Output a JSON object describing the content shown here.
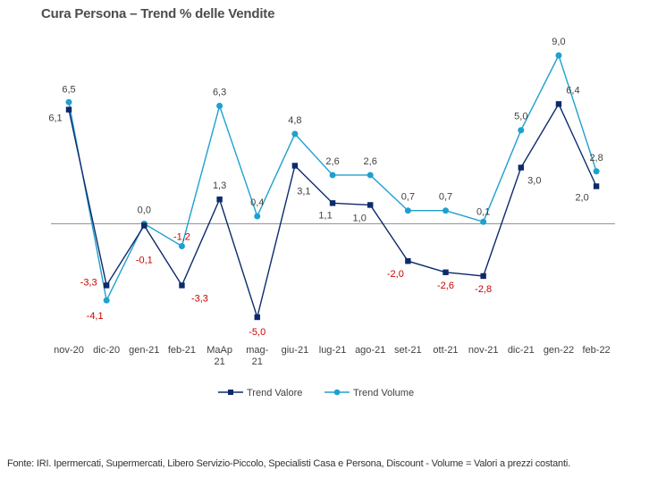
{
  "title": "Cura Persona –  Trend % delle Vendite",
  "footer": "Fonte: IRI. Ipermercati, Supermercati, Libero Servizio-Piccolo,  Specialisti Casa e Persona, Discount -  Volume =  Valori a prezzi  costanti.",
  "colors": {
    "valore": "#0d2a6b",
    "volume": "#1fa0cf",
    "negative_label": "#cc0000",
    "positive_label": "#404040",
    "zero_line": "#8c8c8c"
  },
  "chart_data": {
    "type": "line",
    "categories": [
      "nov-20",
      "dic-20",
      "gen-21",
      "feb-21",
      "MaAp 21",
      "mag-21",
      "giu-21",
      "lug-21",
      "ago-21",
      "set-21",
      "ott-21",
      "nov-21",
      "dic-21",
      "gen-22",
      "feb-22"
    ],
    "category_lines": [
      [
        "nov-20"
      ],
      [
        "dic-20"
      ],
      [
        "gen-21"
      ],
      [
        "feb-21"
      ],
      [
        "MaAp",
        "21"
      ],
      [
        "mag-",
        "21"
      ],
      [
        "giu-21"
      ],
      [
        "lug-21"
      ],
      [
        "ago-21"
      ],
      [
        "set-21"
      ],
      [
        "ott-21"
      ],
      [
        "nov-21"
      ],
      [
        "dic-21"
      ],
      [
        "gen-22"
      ],
      [
        "feb-22"
      ]
    ],
    "series": [
      {
        "name": "Trend Valore",
        "marker": "square",
        "values": [
          6.1,
          -3.3,
          -0.1,
          -3.3,
          1.3,
          -5.0,
          3.1,
          1.1,
          1.0,
          -2.0,
          -2.6,
          -2.8,
          3.0,
          6.4,
          2.0
        ],
        "labels": [
          "6,1",
          "-3,3",
          "-0,1",
          "-3,3",
          "1,3",
          "-5,0",
          "3,1",
          "1,1",
          "1,0",
          "-2,0",
          "-2,6",
          "-2,8",
          "3,0",
          "6,4",
          "2,0"
        ]
      },
      {
        "name": "Trend Volume",
        "marker": "circle",
        "values": [
          6.5,
          -4.1,
          0.0,
          -1.2,
          6.3,
          0.4,
          4.8,
          2.6,
          2.6,
          0.7,
          0.7,
          0.1,
          5.0,
          9.0,
          2.8
        ],
        "labels": [
          "6,5",
          "-4,1",
          "0,0",
          "-1,2",
          "6,3",
          "0,4",
          "4,8",
          "2,6",
          "2,6",
          "0,7",
          "0,7",
          "0,1",
          "5,0",
          "9,0",
          "2,8"
        ]
      }
    ],
    "ylim": [
      -5.0,
      9.0
    ],
    "grid": false,
    "zero_line": true,
    "legend_position": "bottom"
  }
}
